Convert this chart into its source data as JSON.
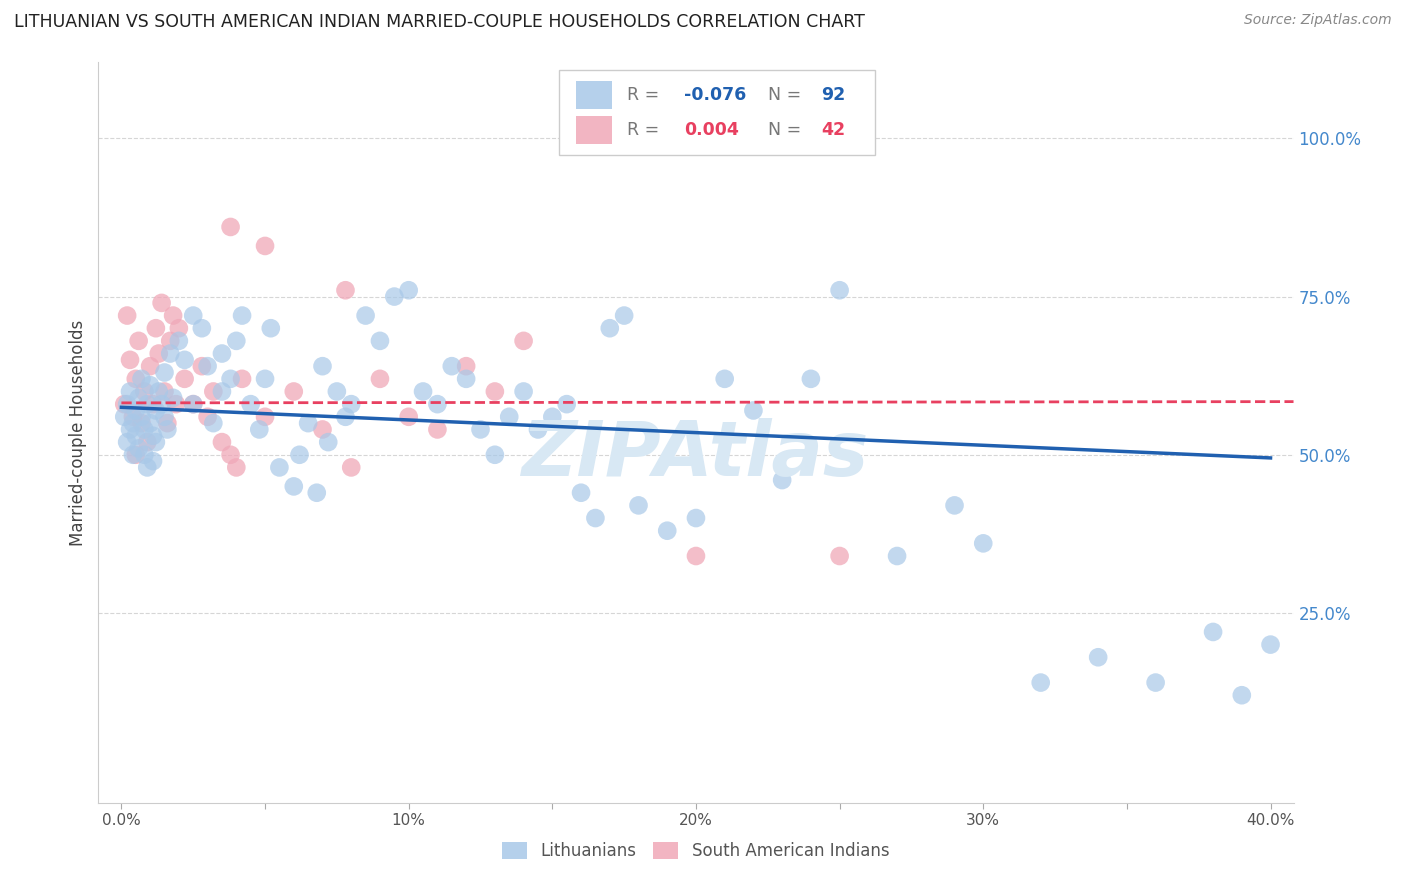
{
  "title": "LITHUANIAN VS SOUTH AMERICAN INDIAN MARRIED-COUPLE HOUSEHOLDS CORRELATION CHART",
  "source": "Source: ZipAtlas.com",
  "ylabel": "Married-couple Households",
  "right_ytick_labels": [
    "100.0%",
    "75.0%",
    "50.0%",
    "25.0%"
  ],
  "right_ytick_vals": [
    1.0,
    0.75,
    0.5,
    0.25
  ],
  "xtick_vals": [
    0.0,
    0.05,
    0.1,
    0.15,
    0.2,
    0.25,
    0.3,
    0.35,
    0.4
  ],
  "xtick_labels": [
    "0.0%",
    "",
    "10%",
    "",
    "20%",
    "",
    "30%",
    "",
    "40.0%"
  ],
  "xlim": [
    -0.008,
    0.408
  ],
  "ylim": [
    -0.05,
    1.12
  ],
  "blue_color": "#a8c8e8",
  "pink_color": "#f0a8b8",
  "blue_line_color": "#2060b0",
  "pink_line_color": "#e84060",
  "grid_color": "#cccccc",
  "background_color": "#ffffff",
  "title_color": "#222222",
  "axis_label_color": "#444444",
  "right_tick_color": "#4488cc",
  "watermark_color": "#d8e8f4",
  "legend_blue_label": "Lithuanians",
  "legend_pink_label": "South American Indians",
  "blue_R_text": "-0.076",
  "blue_N_text": "92",
  "pink_R_text": "0.004",
  "pink_N_text": "42",
  "blue_line_x0": 0.0,
  "blue_line_x1": 0.4,
  "blue_line_y0": 0.575,
  "blue_line_y1": 0.495,
  "pink_line_x0": 0.0,
  "pink_line_x1": 0.408,
  "pink_line_y0": 0.582,
  "pink_line_y1": 0.584
}
